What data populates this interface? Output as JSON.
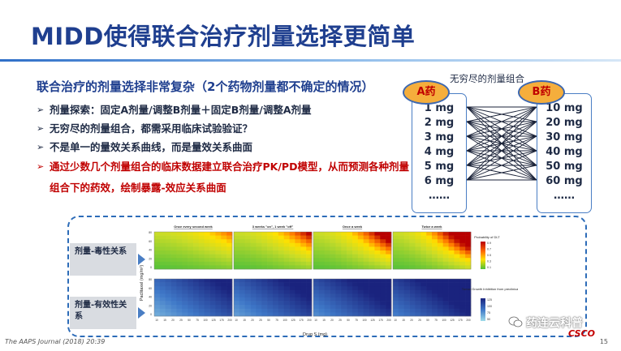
{
  "slide": {
    "title": "MIDD使得联合治疗剂量选择更简单",
    "heading": "联合治疗的剂量选择非常复杂（2个药物剂量都不确定的情况）",
    "bullets": [
      "剂量探索：固定A剂量/调整B剂量＋固定B剂量/调整A剂量",
      "无穷尽的剂量组合，都需采用临床试验验证？",
      "不是单一的量效关系曲线，而是量效关系曲面",
      "通过少数几个剂量组合的临床数据建立联合治疗PK/PD模型，从而预测各种剂量组合下的药效，绘制暴露-效应关系曲面"
    ],
    "bullet_marker": "➢"
  },
  "combo_diagram": {
    "title": "无穷尽的剂量组合",
    "drug_a": "A药",
    "drug_b": "B药",
    "doses_a": [
      "1 mg",
      "2 mg",
      "3 mg",
      "4 mg",
      "5 mg",
      "6 mg",
      "……"
    ],
    "doses_b": [
      "10 mg",
      "20 mg",
      "30 mg",
      "40 mg",
      "50 mg",
      "60 mg",
      "……"
    ],
    "line_color": "#1a2238",
    "oval_color": "#f5ae3c"
  },
  "figure": {
    "row_labels": [
      "剂量-毒性关系",
      "剂量-有效性关系"
    ],
    "panel_titles": [
      "Once every second week",
      "3 weeks \"on\", 1 week \"off\"",
      "Once a week",
      "Twice a week"
    ],
    "y_axis_label": "Paclitaxel (mg/m²)",
    "y_ticks": [
      "80",
      "60",
      "40",
      "20",
      "0"
    ],
    "x_axis_label": "Drug S (mg)",
    "x_ticks": [
      "10",
      "15",
      "20",
      "25",
      "50",
      "75",
      "100",
      "125",
      "175",
      "200"
    ],
    "legend_top": {
      "title": "Probability of DLT",
      "ticks": [
        "0.9",
        "0.7",
        "0.5",
        "0.3",
        "0.1"
      ]
    },
    "legend_bottom": {
      "title": "Tumor Growth Inhibition from preclinical",
      "ticks": [
        "125",
        "100",
        "75",
        "50"
      ]
    }
  },
  "footer": {
    "citation": "The AAPS Journal (2018) 20:39",
    "page": "15"
  },
  "watermark": {
    "text": "药连云科普",
    "logo": "CSCO"
  }
}
